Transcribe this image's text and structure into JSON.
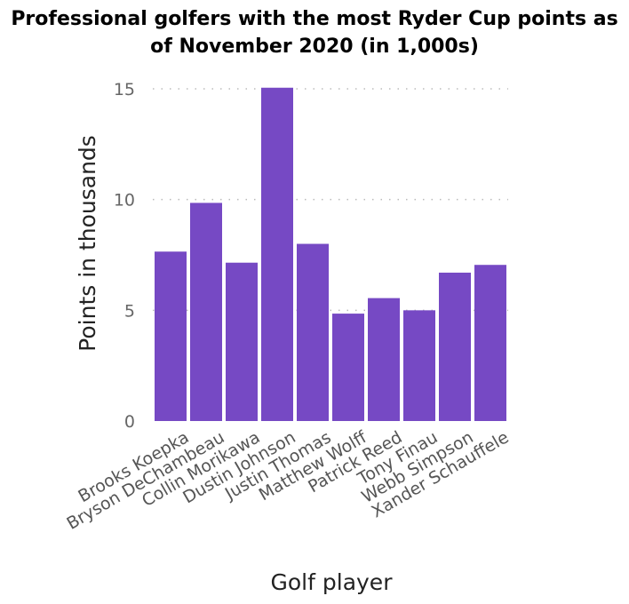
{
  "chart_data": {
    "type": "bar",
    "title": "Professional golfers with the most Ryder Cup points as of November 2020 (in 1,000s)",
    "xlabel": "Golf player",
    "ylabel": "Points in thousands",
    "categories": [
      "Brooks Koepka",
      "Bryson DeChambeau",
      "Collin Morikawa",
      "Dustin Johnson",
      "Justin Thomas",
      "Matthew Wolff",
      "Patrick Reed",
      "Tony Finau",
      "Webb Simpson",
      "Xander Schauffele"
    ],
    "values": [
      7.65,
      9.85,
      7.15,
      15.05,
      8.0,
      4.85,
      5.55,
      5.0,
      6.7,
      7.05
    ],
    "ylim": [
      0,
      15
    ],
    "yticks": [
      "0",
      "5",
      "10",
      "15"
    ],
    "grid": true,
    "color": "#7649c4",
    "gridColor": "#bbbbbb"
  }
}
